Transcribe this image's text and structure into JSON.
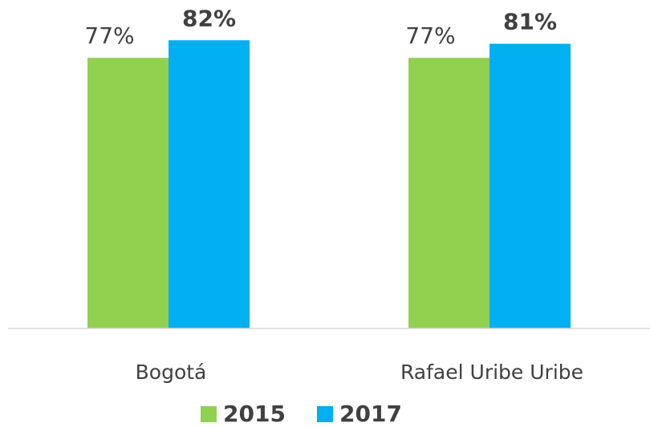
{
  "chart_data": {
    "type": "bar",
    "categories": [
      "Bogotá",
      "Rafael Uribe Uribe"
    ],
    "series": [
      {
        "name": "2015",
        "color": "#92d050",
        "values": [
          77,
          77
        ],
        "value_labels": [
          "77%",
          "77%"
        ],
        "label_weight": "normal"
      },
      {
        "name": "2017",
        "color": "#00b0f0",
        "values": [
          82,
          81
        ],
        "value_labels": [
          "82%",
          "81%"
        ],
        "label_weight": "bold"
      }
    ],
    "ylim": [
      0,
      93
    ],
    "legend": "bottom"
  }
}
